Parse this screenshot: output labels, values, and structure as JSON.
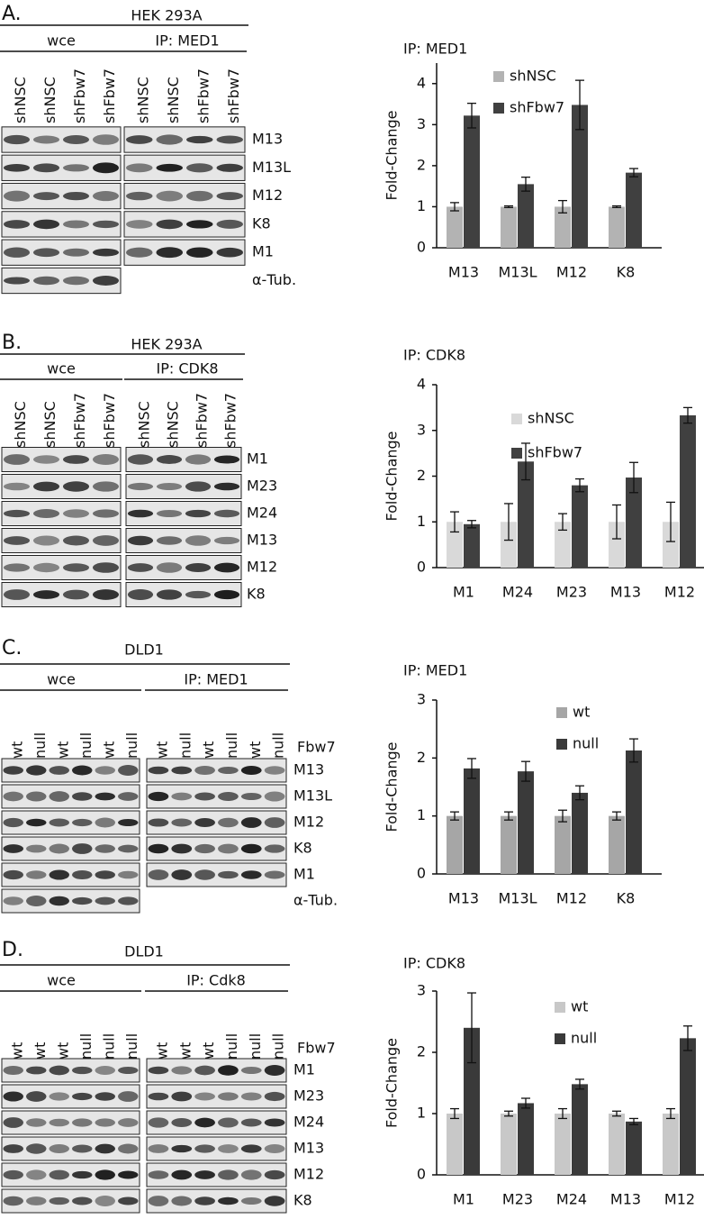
{
  "blots": [
    {
      "label": "A.",
      "cell_line": "HEK 293A",
      "groups": [
        {
          "name": "wce",
          "lanes": [
            "shNSC",
            "shNSC",
            "shFbw7",
            "shFbw7"
          ]
        },
        {
          "name": "IP: MED1",
          "lanes": [
            "shNSC",
            "shNSC",
            "shFbw7",
            "shFbw7"
          ]
        }
      ],
      "rows": [
        "M13",
        "M13L",
        "M12",
        "K8",
        "M1",
        "α-Tub."
      ]
    },
    {
      "label": "B.",
      "cell_line": "HEK 293A",
      "groups": [
        {
          "name": "wce",
          "lanes": [
            "shNSC",
            "shNSC",
            "shFbw7",
            "shFbw7"
          ]
        },
        {
          "name": "IP: CDK8",
          "lanes": [
            "shNSC",
            "shNSC",
            "shFbw7",
            "shFbw7"
          ]
        }
      ],
      "rows": [
        "M1",
        "M23",
        "M24",
        "M13",
        "M12",
        "K8"
      ]
    },
    {
      "label": "C.",
      "cell_line": "DLD1",
      "groups": [
        {
          "name": "wce",
          "lanes": [
            "wt",
            "null",
            "wt",
            "null",
            "wt",
            "null"
          ]
        },
        {
          "name": "IP: MED1",
          "lanes": [
            "wt",
            "null",
            "wt",
            "null",
            "wt",
            "null"
          ]
        }
      ],
      "condition": "Fbw7",
      "rows": [
        "M13",
        "M13L",
        "M12",
        "K8",
        "M1",
        "α-Tub."
      ]
    },
    {
      "label": "D.",
      "cell_line": "DLD1",
      "groups": [
        {
          "name": "wce",
          "lanes": [
            "wt",
            "wt",
            "wt",
            "null",
            "null",
            "null"
          ]
        },
        {
          "name": "IP: Cdk8",
          "lanes": [
            "wt",
            "wt",
            "wt",
            "null",
            "null",
            "null"
          ]
        }
      ],
      "condition": "Fbw7",
      "rows": [
        "M1",
        "M23",
        "M24",
        "M13",
        "M12",
        "K8"
      ]
    }
  ],
  "chart_data": [
    {
      "type": "bar",
      "title": "IP: MED1",
      "y_label": "Fold-Change",
      "categories": [
        "M13",
        "M13L",
        "M12",
        "K8"
      ],
      "series": [
        {
          "name": "shNSC",
          "color": "#b3b3b3",
          "values": [
            1,
            1,
            1,
            1
          ],
          "errors": [
            0.1,
            0.02,
            0.15,
            0.02
          ]
        },
        {
          "name": "shFbw7",
          "color": "#404040",
          "values": [
            3.22,
            1.55,
            3.48,
            1.83
          ],
          "errors": [
            0.3,
            0.17,
            0.6,
            0.1
          ]
        }
      ],
      "ylim": [
        0,
        4.5
      ],
      "yticks": [
        0,
        1,
        2,
        3,
        4
      ]
    },
    {
      "type": "bar",
      "title": "IP: CDK8",
      "y_label": "Fold-Change",
      "categories": [
        "M1",
        "M24",
        "M23",
        "M13",
        "M12"
      ],
      "series": [
        {
          "name": "shNSC",
          "color": "#d9d9d9",
          "values": [
            1,
            1,
            1,
            1,
            1
          ],
          "errors": [
            0.22,
            0.4,
            0.18,
            0.37,
            0.43
          ]
        },
        {
          "name": "shFbw7",
          "color": "#404040",
          "values": [
            0.95,
            2.32,
            1.8,
            1.97,
            3.33
          ],
          "errors": [
            0.08,
            0.4,
            0.14,
            0.33,
            0.17
          ]
        }
      ],
      "ylim": [
        0,
        4
      ],
      "yticks": [
        0,
        1,
        2,
        3,
        4
      ]
    },
    {
      "type": "bar",
      "title": "IP: MED1",
      "y_label": "Fold-Change",
      "categories": [
        "M13",
        "M13L",
        "M12",
        "K8"
      ],
      "series": [
        {
          "name": "wt",
          "color": "#a6a6a6",
          "values": [
            1,
            1,
            1,
            1
          ],
          "errors": [
            0.07,
            0.07,
            0.1,
            0.07
          ]
        },
        {
          "name": "null",
          "color": "#3a3a3a",
          "values": [
            1.82,
            1.77,
            1.4,
            2.13
          ],
          "errors": [
            0.17,
            0.17,
            0.12,
            0.2
          ]
        }
      ],
      "ylim": [
        0,
        3
      ],
      "yticks": [
        0,
        1,
        2,
        3
      ]
    },
    {
      "type": "bar",
      "title": "IP: CDK8",
      "y_label": "Fold-Change",
      "categories": [
        "M1",
        "M23",
        "M24",
        "M13",
        "M12"
      ],
      "series": [
        {
          "name": "wt",
          "color": "#c8c8c8",
          "values": [
            1,
            1,
            1,
            1,
            1
          ],
          "errors": [
            0.08,
            0.04,
            0.08,
            0.04,
            0.08
          ]
        },
        {
          "name": "null",
          "color": "#3a3a3a",
          "values": [
            2.4,
            1.17,
            1.48,
            0.87,
            2.23
          ],
          "errors": [
            0.57,
            0.08,
            0.08,
            0.05,
            0.2
          ]
        }
      ],
      "ylim": [
        0,
        3
      ],
      "yticks": [
        0,
        1,
        2,
        3
      ]
    }
  ]
}
